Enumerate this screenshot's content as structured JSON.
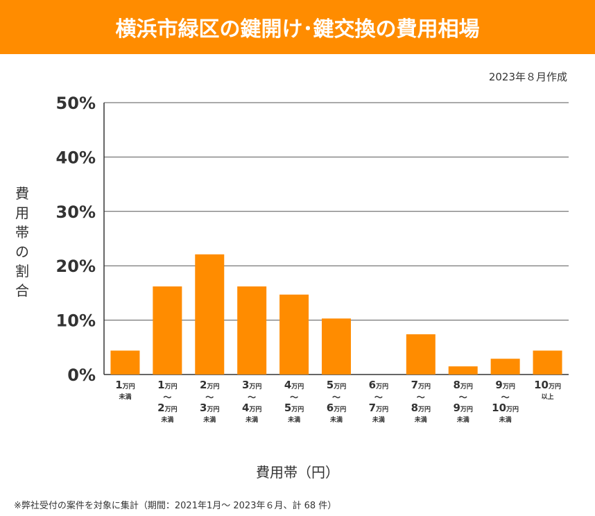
{
  "header": {
    "title": "横浜市緑区の鍵開け･鍵交換の費用相場",
    "date": "2023年８月作成"
  },
  "footnote": "※弊社受付の案件を対象に集計（期間：2021年1月～ 2023年６月、計 68 件）",
  "colors": {
    "bar": "#ff8c00",
    "banner": "#ff8c00",
    "grid": "#555555"
  },
  "chart_data": {
    "type": "bar",
    "xlabel": "費用帯（円）",
    "ylabel": "費用帯の割合",
    "ylim": [
      0,
      50
    ],
    "yticks": [
      "0%",
      "10%",
      "20%",
      "30%",
      "40%",
      "50%"
    ],
    "grid": true,
    "categories": [
      [
        "1万円",
        "未満"
      ],
      [
        "1万円",
        "～",
        "2万円",
        "未満"
      ],
      [
        "2万円",
        "～",
        "3万円",
        "未満"
      ],
      [
        "3万円",
        "～",
        "4万円",
        "未満"
      ],
      [
        "4万円",
        "～",
        "5万円",
        "未満"
      ],
      [
        "5万円",
        "～",
        "6万円",
        "未満"
      ],
      [
        "6万円",
        "～",
        "7万円",
        "未満"
      ],
      [
        "7万円",
        "～",
        "8万円",
        "未満"
      ],
      [
        "8万円",
        "～",
        "9万円",
        "未満"
      ],
      [
        "9万円",
        "～",
        "10万円",
        "未満"
      ],
      [
        "10万円",
        "以上"
      ]
    ],
    "values": [
      4.4,
      16.2,
      22.1,
      16.2,
      14.7,
      10.3,
      0,
      7.4,
      1.5,
      2.9,
      4.4
    ]
  }
}
